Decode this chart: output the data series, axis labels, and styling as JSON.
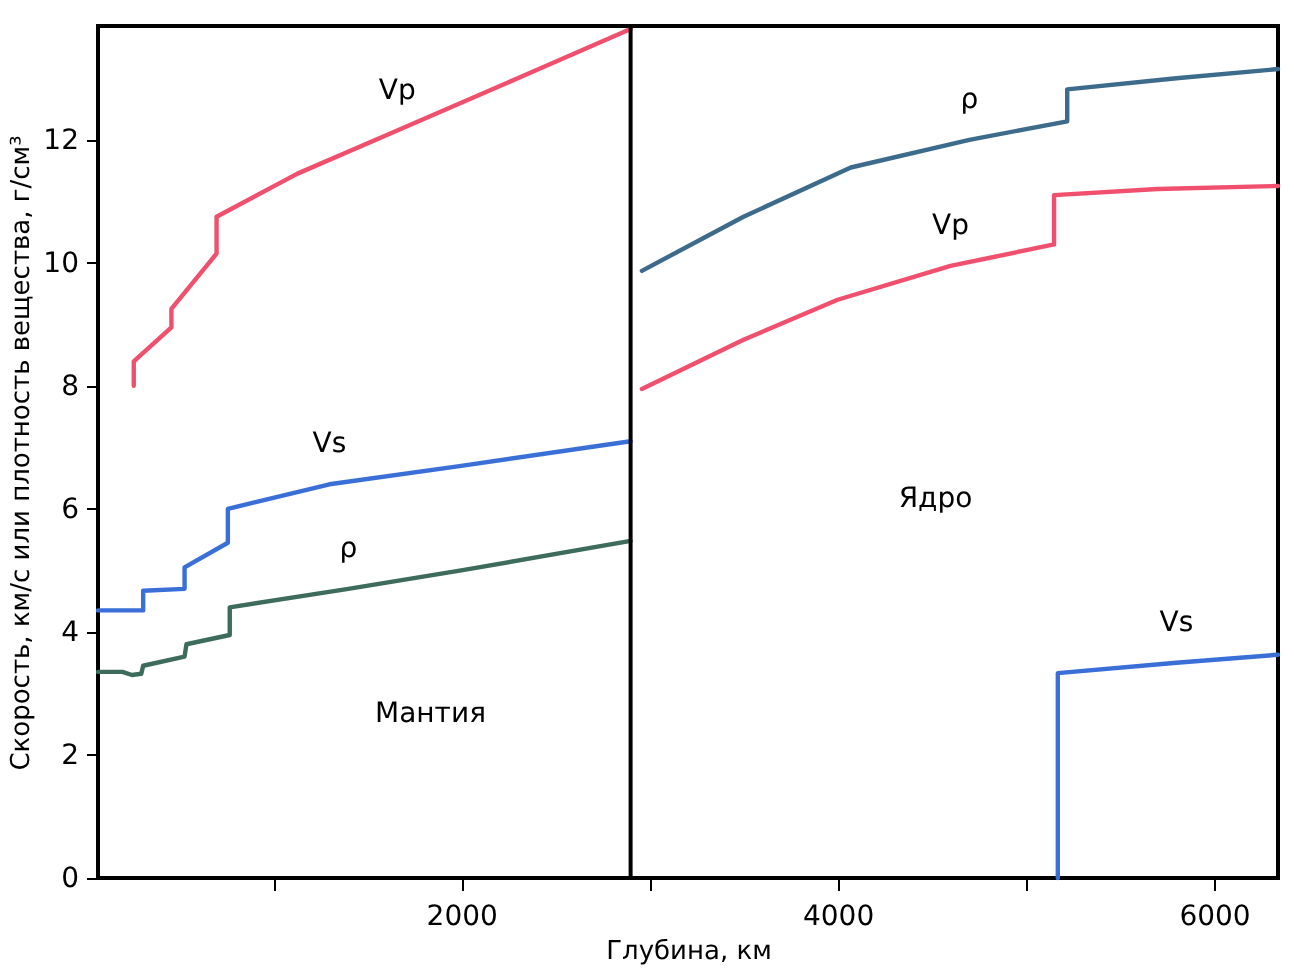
{
  "chart_data": {
    "type": "line",
    "xlabel": "Глубина, км",
    "ylabel": "Скорость, км/с или плотность вещества, г/см³",
    "xlim": [
      70,
      6340
    ],
    "ylim": [
      0,
      13.85
    ],
    "xticks": [
      {
        "value": 1000,
        "label": null
      },
      2000,
      {
        "value": 3000,
        "label": null
      },
      4000,
      {
        "value": 5000,
        "label": null
      },
      6000
    ],
    "yticks": [
      0,
      2,
      4,
      6,
      8,
      10,
      12
    ],
    "grid": false,
    "marker": "none",
    "line_style": "solid",
    "series": [
      {
        "name": "Vp",
        "color": "#f0506e",
        "x": [
          260,
          260,
          460,
          460,
          700,
          700,
          1130,
          1660,
          2300,
          2900
        ],
        "values": [
          8.0,
          8.4,
          8.95,
          9.25,
          10.15,
          10.75,
          11.45,
          12.15,
          13.0,
          13.8
        ]
      },
      {
        "name": "Vs",
        "color": "#3a6fd8",
        "x": [
          70,
          310,
          310,
          530,
          530,
          760,
          760,
          1300,
          2000,
          2900
        ],
        "values": [
          4.35,
          4.35,
          4.67,
          4.7,
          5.05,
          5.45,
          6.0,
          6.4,
          6.7,
          7.1
        ]
      },
      {
        "name": "ρ",
        "color": "#3d6b5c",
        "x": [
          70,
          200,
          250,
          300,
          310,
          530,
          540,
          770,
          770,
          1400,
          2000,
          2900
        ],
        "values": [
          3.35,
          3.35,
          3.3,
          3.32,
          3.45,
          3.6,
          3.8,
          3.95,
          4.4,
          4.7,
          5.0,
          5.48
        ]
      },
      {
        "name": "ρ",
        "color": "#3d6b8c",
        "x": [
          2960,
          3500,
          4070,
          4700,
          5220,
          5220,
          5800,
          6340
        ],
        "values": [
          9.87,
          10.75,
          11.55,
          12.0,
          12.3,
          12.82,
          13.0,
          13.15
        ]
      },
      {
        "name": "Vp",
        "color": "#f0506e",
        "x": [
          2960,
          3500,
          4000,
          4600,
          5150,
          5150,
          5700,
          6340
        ],
        "values": [
          7.95,
          8.75,
          9.4,
          9.95,
          10.3,
          11.1,
          11.2,
          11.25
        ]
      },
      {
        "name": "Vs",
        "color": "#3a6fd8",
        "x": [
          5170,
          5170,
          5800,
          6340
        ],
        "values": [
          0,
          3.33,
          3.5,
          3.63
        ]
      }
    ],
    "ref_lines": [
      {
        "axis": "x",
        "value": 2900,
        "color": "#000000"
      }
    ],
    "annotations": [
      "Мантия",
      "Ядро"
    ]
  }
}
